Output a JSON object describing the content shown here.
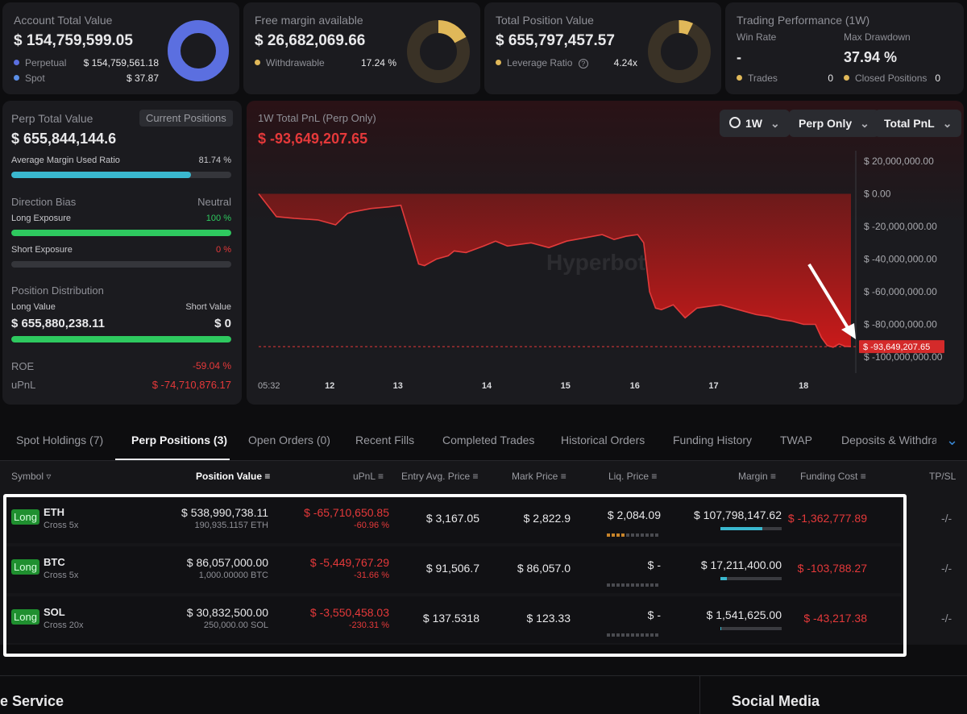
{
  "summary": {
    "account": {
      "title": "Account Total Value",
      "value": "$ 154,759,599.05",
      "rows": [
        {
          "label": "Perpetual",
          "value": "$ 154,759,561.18",
          "color": "#5b6fe0"
        },
        {
          "label": "Spot",
          "value": "$ 37.87",
          "color": "#5b8ee6"
        }
      ]
    },
    "margin": {
      "title": "Free margin available",
      "value": "$ 26,682,069.66",
      "row": {
        "label": "Withdrawable",
        "value": "17.24 %",
        "color": "#e0b859"
      }
    },
    "position": {
      "title": "Total Position Value",
      "value": "$ 655,797,457.57",
      "row": {
        "label": "Leverage Ratio",
        "value": "4.24x",
        "color": "#e0b859"
      }
    },
    "performance": {
      "title": "Trading Performance (1W)",
      "win_rate_label": "Win Rate",
      "win_rate": "-",
      "drawdown_label": "Max Drawdown",
      "drawdown": "37.94 %",
      "trades_label": "Trades",
      "trades": "0",
      "closed_label": "Closed Positions",
      "closed": "0"
    }
  },
  "perp_panel": {
    "title": "Perp Total Value",
    "badge": "Current Positions",
    "value": "$ 655,844,144.6",
    "margin_ratio_label": "Average Margin Used Ratio",
    "margin_ratio": "81.74 %",
    "margin_ratio_pct": 81.74,
    "bias_label": "Direction Bias",
    "bias": "Neutral",
    "long_exposure_label": "Long Exposure",
    "long_exposure": "100 %",
    "long_exposure_pct": 100,
    "short_exposure_label": "Short Exposure",
    "short_exposure": "0 %",
    "short_exposure_pct": 0,
    "distribution_label": "Position Distribution",
    "long_value_label": "Long Value",
    "long_value": "$ 655,880,238.11",
    "short_value_label": "Short Value",
    "short_value": "$ 0",
    "long_share_pct": 100,
    "roe_label": "ROE",
    "roe": "-59.04 %",
    "upnl_label": "uPnL",
    "upnl": "$ -74,710,876.17"
  },
  "pnl_chart": {
    "title": "1W Total PnL (Perp Only)",
    "value": "$ -93,649,207.65",
    "controls": {
      "period": "1W",
      "scope": "Perp Only",
      "metric": "Total PnL"
    },
    "watermark": "Hyperbot"
  },
  "chart_data": {
    "type": "area",
    "title": "1W Total PnL (Perp Only)",
    "ylim": [
      -100000000,
      20000000
    ],
    "yticks": [
      "$ 20,000,000.00",
      "$ 0.00",
      "$ -20,000,000.00",
      "$ -40,000,000.00",
      "$ -60,000,000.00",
      "$ -80,000,000.00",
      "$ -100,000,000.00"
    ],
    "xticks": [
      "05:32",
      "12",
      "13",
      "14",
      "15",
      "16",
      "17",
      "18"
    ],
    "current_label": "$ -93,649,207.65",
    "current_value": -93649207.65,
    "x": [
      0,
      0.03,
      0.06,
      0.1,
      0.13,
      0.15,
      0.16,
      0.19,
      0.22,
      0.24,
      0.27,
      0.28,
      0.3,
      0.32,
      0.33,
      0.35,
      0.38,
      0.4,
      0.42,
      0.46,
      0.49,
      0.52,
      0.55,
      0.58,
      0.6,
      0.62,
      0.64,
      0.65,
      0.66,
      0.67,
      0.68,
      0.7,
      0.72,
      0.74,
      0.76,
      0.78,
      0.8,
      0.82,
      0.84,
      0.86,
      0.88,
      0.9,
      0.92,
      0.94,
      0.95,
      0.96,
      0.97,
      0.98,
      0.99,
      1.0
    ],
    "values": [
      0,
      -14000000,
      -15000000,
      -16000000,
      -19000000,
      -12000000,
      -11000000,
      -9000000,
      -8000000,
      -7000000,
      -43000000,
      -44000000,
      -40000000,
      -38000000,
      -35000000,
      -36000000,
      -32000000,
      -29000000,
      -32000000,
      -30000000,
      -33000000,
      -29000000,
      -27000000,
      -25000000,
      -28000000,
      -26000000,
      -25000000,
      -30000000,
      -60000000,
      -70000000,
      -71000000,
      -68000000,
      -76000000,
      -70000000,
      -69000000,
      -68000000,
      -70000000,
      -72000000,
      -74000000,
      -75000000,
      -77000000,
      -78000000,
      -80000000,
      -80000000,
      -88000000,
      -93000000,
      -94000000,
      -92000000,
      -93500000,
      -93649207
    ]
  },
  "tabs": [
    {
      "label": "Spot Holdings (7)"
    },
    {
      "label": "Perp Positions (3)"
    },
    {
      "label": "Open Orders (0)"
    },
    {
      "label": "Recent Fills"
    },
    {
      "label": "Completed Trades"
    },
    {
      "label": "Historical Orders"
    },
    {
      "label": "Funding History"
    },
    {
      "label": "TWAP"
    },
    {
      "label": "Deposits & Withdrav"
    }
  ],
  "columns": {
    "symbol": "Symbol",
    "position_value": "Position Value",
    "upnl": "uPnL",
    "entry": "Entry Avg. Price",
    "mark": "Mark Price",
    "liq": "Liq. Price",
    "margin": "Margin",
    "funding": "Funding Cost",
    "tpsl": "TP/SL"
  },
  "positions": [
    {
      "side": "Long",
      "symbol": "ETH",
      "mode": "Cross 5x",
      "value": "$ 538,990,738.11",
      "qty": "190,935.1157 ETH",
      "upnl": "$ -65,710,650.85",
      "upnl_pct": "-60.96 %",
      "entry": "$ 3,167.05",
      "mark": "$ 2,822.9",
      "liq": "$ 2,084.09",
      "liq_level": 4,
      "margin": "$ 107,798,147.62",
      "margin_share": 0.68,
      "funding": "$ -1,362,777.89",
      "tpsl": "-/-"
    },
    {
      "side": "Long",
      "symbol": "BTC",
      "mode": "Cross 5x",
      "value": "$ 86,057,000.00",
      "qty": "1,000.00000 BTC",
      "upnl": "$ -5,449,767.29",
      "upnl_pct": "-31.66 %",
      "entry": "$ 91,506.7",
      "mark": "$ 86,057.0",
      "liq": "$ -",
      "liq_level": 0,
      "margin": "$ 17,211,400.00",
      "margin_share": 0.11,
      "funding": "$ -103,788.27",
      "tpsl": "-/-"
    },
    {
      "side": "Long",
      "symbol": "SOL",
      "mode": "Cross 20x",
      "value": "$ 30,832,500.00",
      "qty": "250,000.00 SOL",
      "upnl": "$ -3,550,458.03",
      "upnl_pct": "-230.31 %",
      "entry": "$ 137.5318",
      "mark": "$ 123.33",
      "liq": "$ -",
      "liq_level": 0,
      "margin": "$ 1,541,625.00",
      "margin_share": 0.01,
      "funding": "$ -43,217.38",
      "tpsl": "-/-"
    }
  ],
  "footer": {
    "service": "e Service",
    "social": "Social Media"
  }
}
